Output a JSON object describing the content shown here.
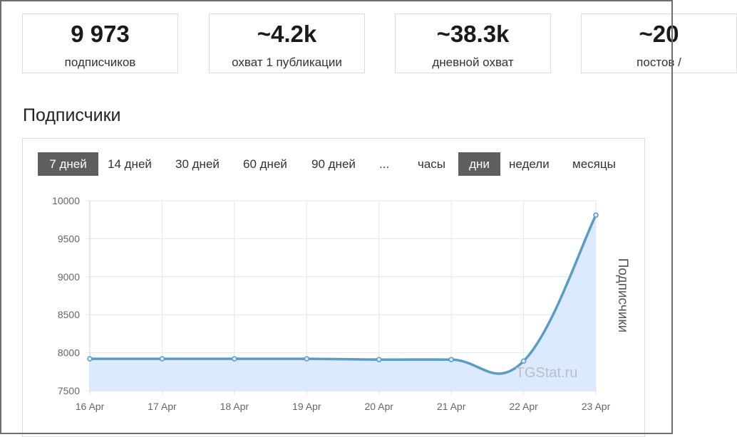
{
  "stats": [
    {
      "value": "9 973",
      "label": "подписчиков"
    },
    {
      "value": "~4.2k",
      "label": "охват 1 публикации"
    },
    {
      "value": "~38.3k",
      "label": "дневной охват"
    },
    {
      "value": "~20",
      "label": "постов /"
    }
  ],
  "section_title": "Подписчики",
  "period_tabs": [
    "7 дней",
    "14 дней",
    "30 дней",
    "60 дней",
    "90 дней",
    "..."
  ],
  "granularity_tabs": [
    "часы",
    "дни",
    "недели",
    "месяцы"
  ],
  "active_period": "7 дней",
  "active_granularity": "дни",
  "watermark": "TGStat.ru",
  "colors": {
    "line": "#5a9bc7",
    "fill": "#dceaff",
    "active_tab_bg": "#5e5e5e",
    "grid": "#e6e6e6"
  },
  "chart_data": {
    "type": "area",
    "title": "",
    "xlabel": "",
    "ylabel": "Подписчики",
    "x": [
      "16 Apr",
      "17 Apr",
      "18 Apr",
      "19 Apr",
      "20 Apr",
      "21 Apr",
      "22 Apr",
      "23 Apr"
    ],
    "series": [
      {
        "name": "Подписчики",
        "values": [
          7920,
          7920,
          7920,
          7920,
          7910,
          7910,
          7890,
          9810
        ]
      }
    ],
    "ylim": [
      7500,
      10000
    ],
    "yticks": [
      7500,
      8000,
      8500,
      9000,
      9500,
      10000
    ],
    "grid": true,
    "legend": "none"
  }
}
